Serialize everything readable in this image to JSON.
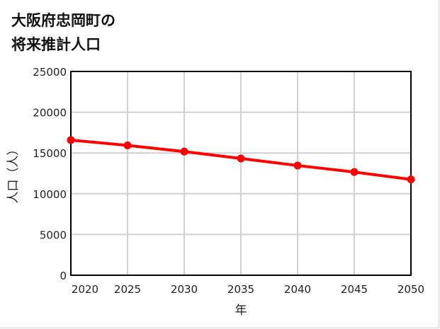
{
  "title": {
    "line1": "大阪府忠岡町の",
    "line2": "将来推計人口"
  },
  "chart_data": {
    "type": "line",
    "title": "大阪府忠岡町の将来推計人口",
    "xlabel": "年",
    "ylabel": "人口（人）",
    "x": [
      2020,
      2025,
      2030,
      2035,
      2040,
      2045,
      2050
    ],
    "categories": [
      "2020",
      "2025",
      "2030",
      "2035",
      "2040",
      "2045",
      "2050"
    ],
    "series": [
      {
        "name": "人口",
        "values": [
          16583,
          15930,
          15170,
          14320,
          13460,
          12660,
          11750
        ],
        "color": "#ff0000"
      }
    ],
    "ylim": [
      0,
      25000
    ],
    "yticks": [
      0,
      5000,
      10000,
      15000,
      20000,
      25000
    ],
    "ytick_labels": [
      "0",
      "5000",
      "10000",
      "15000",
      "20000",
      "25000"
    ],
    "xlim": [
      2020,
      2050
    ],
    "grid": true,
    "legend": false
  },
  "colors": {
    "line": "#ff0000",
    "grid": "#d0d0d0",
    "axis": "#000000"
  }
}
